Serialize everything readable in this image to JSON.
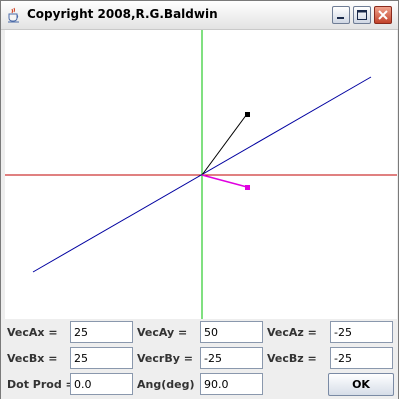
{
  "window": {
    "title": "Copyright 2008,R.G.Baldwin",
    "icon": "java-cup-icon",
    "controls": [
      "minimize-icon",
      "maximize-icon",
      "close-icon"
    ]
  },
  "plot": {
    "axis_colors": {
      "x": "#c00000",
      "y": "#00c000",
      "z": "#0000a0"
    },
    "vector_a_color": "#000000",
    "vector_b_color": "#e000e0",
    "vector_a": [
      25,
      50,
      -25
    ],
    "vector_b": [
      25,
      -25,
      -25
    ]
  },
  "form": {
    "row1": [
      {
        "label": "VecAx =",
        "value": "25"
      },
      {
        "label": "VecAy =",
        "value": "50"
      },
      {
        "label": "VecAz =",
        "value": "-25"
      }
    ],
    "row2": [
      {
        "label": "VecBx =",
        "value": "25"
      },
      {
        "label": "VecrBy =",
        "value": "-25"
      },
      {
        "label": "VecBz =",
        "value": "-25"
      }
    ],
    "row3": [
      {
        "label": "Dot Prod =",
        "value": "0.0"
      },
      {
        "label": "Ang(deg)",
        "value": "90.0"
      }
    ],
    "ok_label": "OK"
  }
}
